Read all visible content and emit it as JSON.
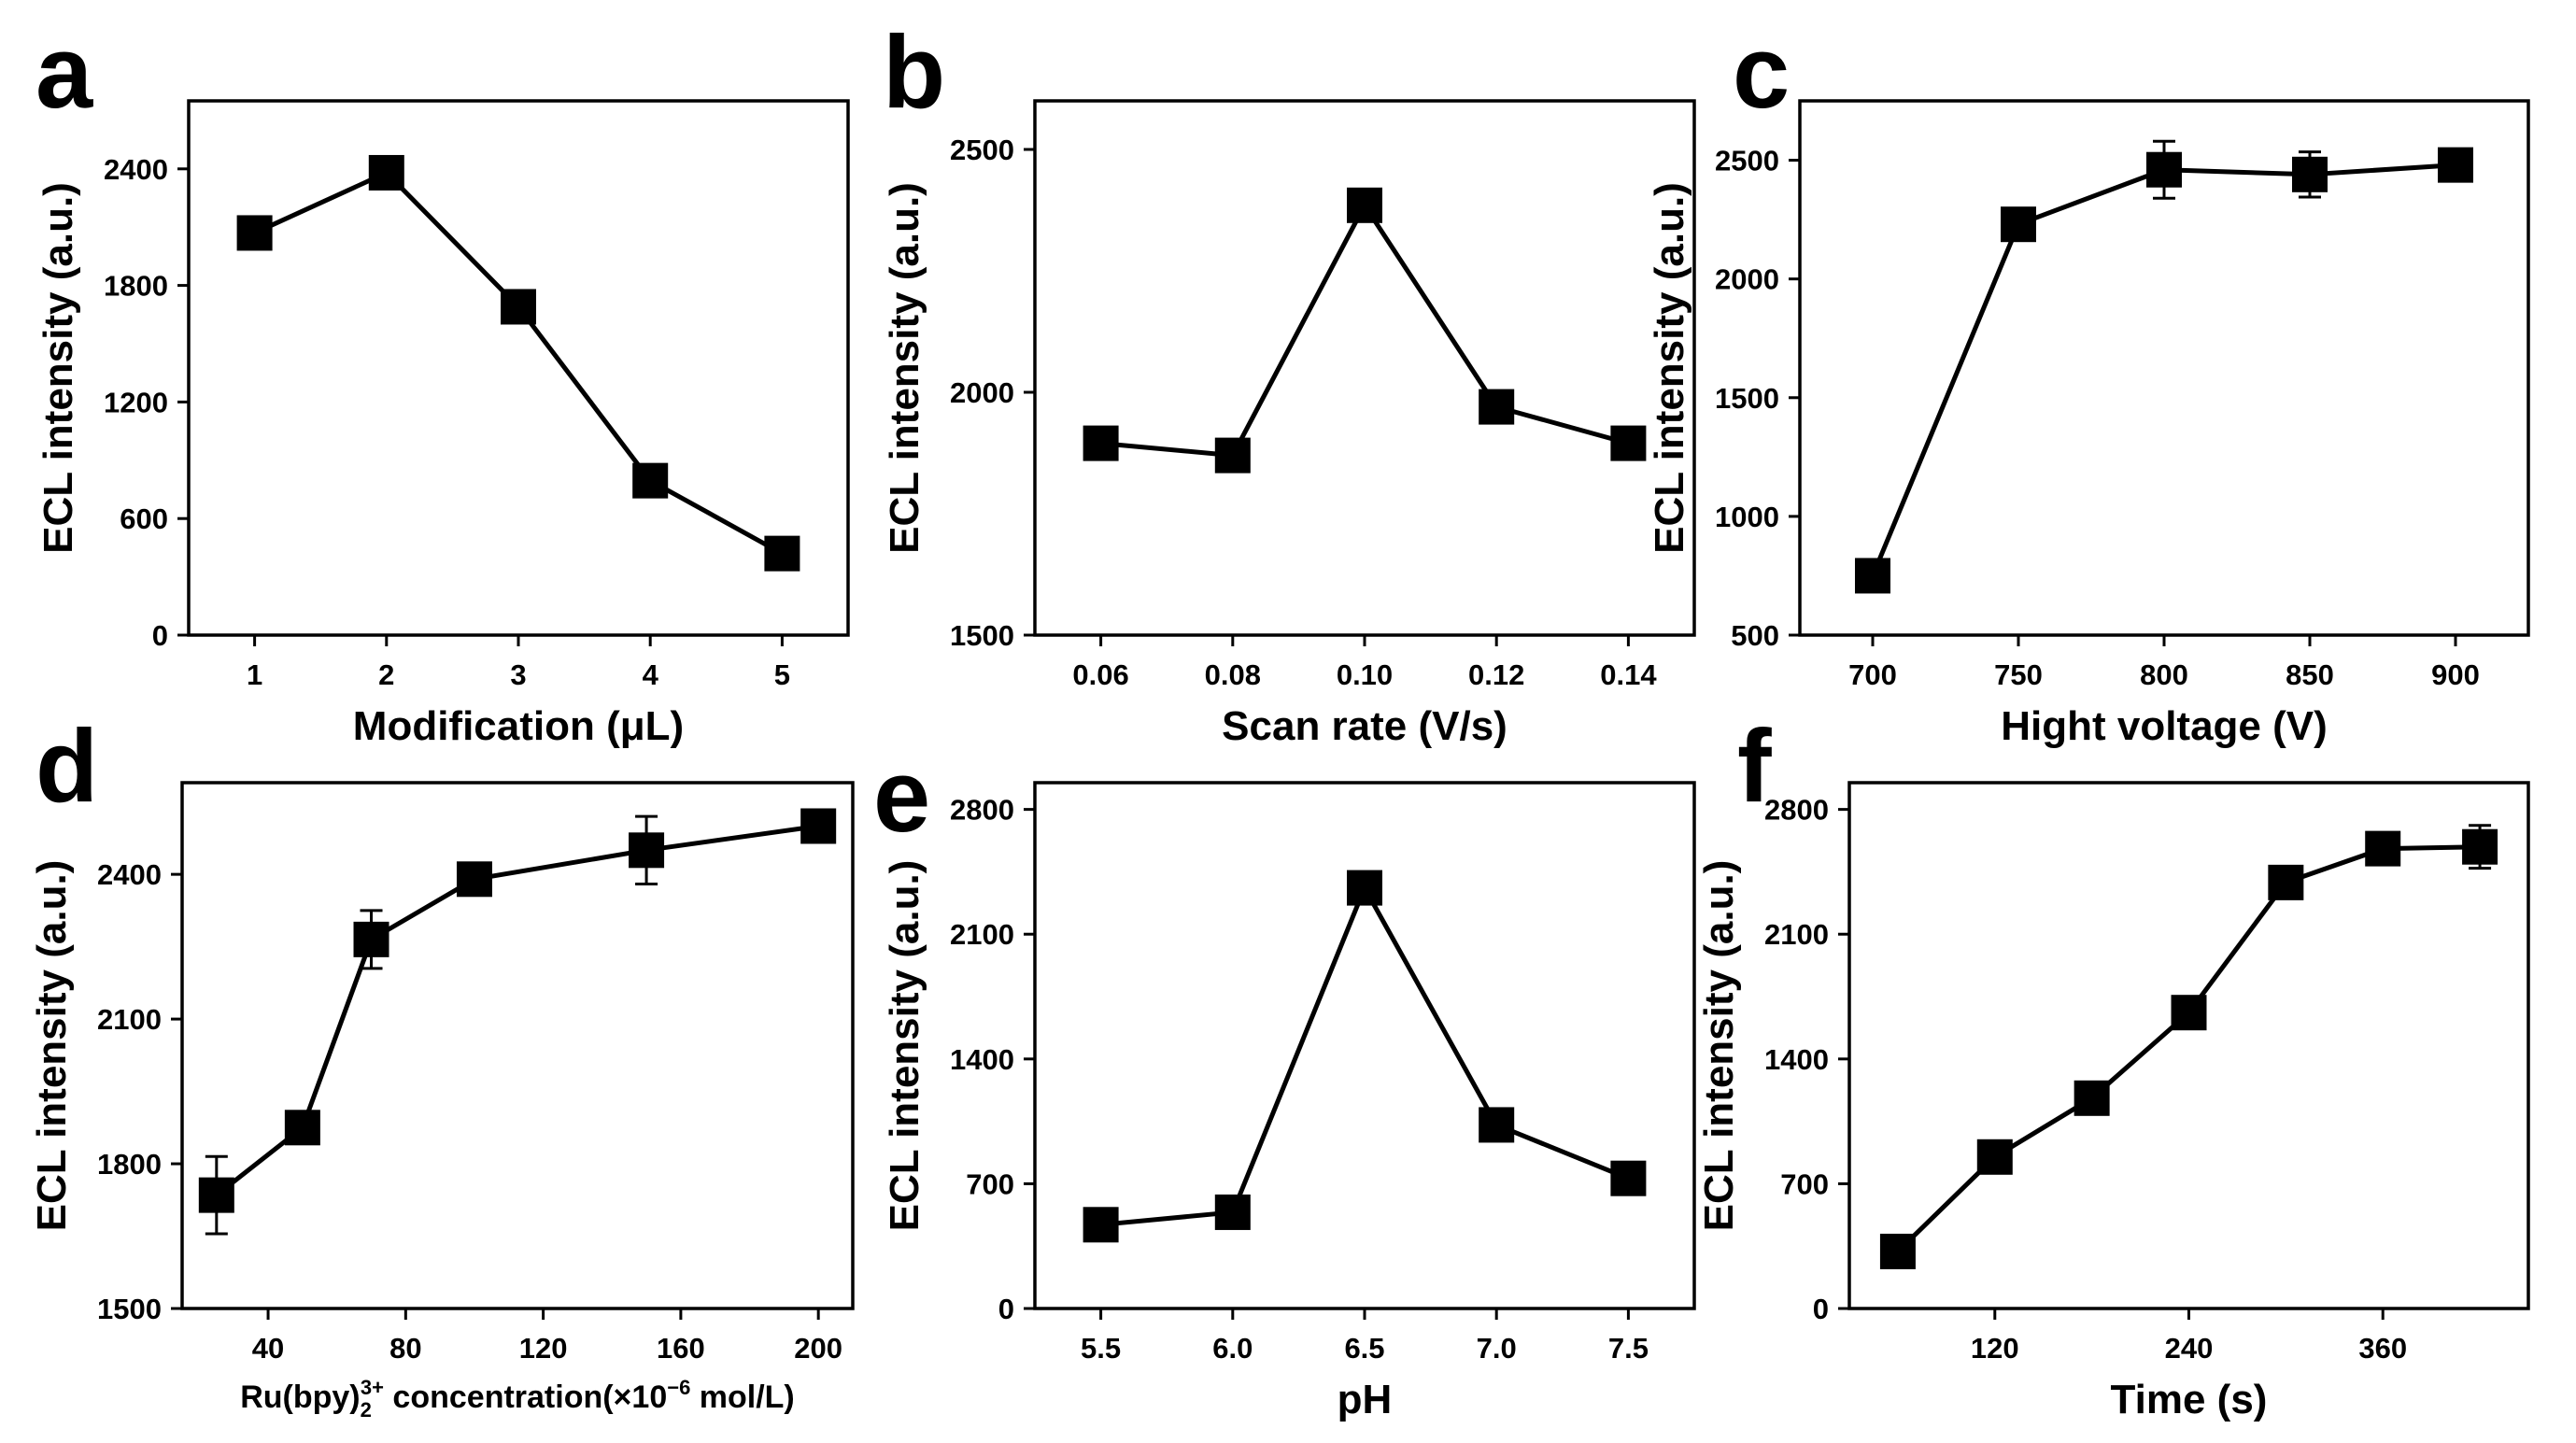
{
  "chart_data": [
    {
      "panel": "a",
      "type": "line",
      "xlabel": "Modification (μL)",
      "ylabel": "ECL intensity (a.u.)",
      "x": [
        1,
        2,
        3,
        4,
        5
      ],
      "values": [
        2070,
        2380,
        1690,
        795,
        420
      ],
      "errors": [
        0,
        0,
        0,
        0,
        0
      ],
      "xlim": [
        0.5,
        5.5
      ],
      "ylim": [
        0,
        2750
      ],
      "xticks": [
        1,
        2,
        3,
        4,
        5
      ],
      "xtick_labels": [
        "1",
        "2",
        "3",
        "4",
        "5"
      ],
      "yticks": [
        0,
        600,
        1200,
        1800,
        2400
      ],
      "ytick_labels": [
        "0",
        "600",
        "1200",
        "1800",
        "2400"
      ]
    },
    {
      "panel": "b",
      "type": "line",
      "xlabel": "Scan rate (V/s)",
      "ylabel": "ECL intensity (a.u.)",
      "x": [
        0.06,
        0.08,
        0.1,
        0.12,
        0.14
      ],
      "values": [
        1895,
        1870,
        2385,
        1970,
        1895
      ],
      "errors": [
        0,
        0,
        0,
        0,
        0
      ],
      "xlim": [
        0.05,
        0.15
      ],
      "ylim": [
        1500,
        2600
      ],
      "xticks": [
        0.06,
        0.08,
        0.1,
        0.12,
        0.14
      ],
      "xtick_labels": [
        "0.06",
        "0.08",
        "0.10",
        "0.12",
        "0.14"
      ],
      "yticks": [
        1500,
        2000,
        2500
      ],
      "ytick_labels": [
        "1500",
        "2000",
        "2500"
      ]
    },
    {
      "panel": "c",
      "type": "line",
      "xlabel": "Hight voltage (V)",
      "ylabel": "ECL intensity (a.u.)",
      "x": [
        700,
        750,
        800,
        850,
        900
      ],
      "values": [
        750,
        2230,
        2460,
        2440,
        2480
      ],
      "errors": [
        0,
        0,
        120,
        95,
        65
      ],
      "xlim": [
        675,
        925
      ],
      "ylim": [
        500,
        2750
      ],
      "xticks": [
        700,
        750,
        800,
        850,
        900
      ],
      "xtick_labels": [
        "700",
        "750",
        "800",
        "850",
        "900"
      ],
      "yticks": [
        500,
        1000,
        1500,
        2000,
        2500
      ],
      "ytick_labels": [
        "500",
        "1000",
        "1500",
        "2000",
        "2500"
      ]
    },
    {
      "panel": "d",
      "type": "line",
      "xlabel": "Ru(bpy)",
      "xlabel_sub": "2",
      "xlabel_sup": "3+",
      "xlabel_rest": " concentration(×10",
      "xlabel_exp": "−6",
      "xlabel_end": " mol/L)",
      "ylabel": "ECL intensity (a.u.)",
      "x": [
        25,
        50,
        70,
        100,
        150,
        200
      ],
      "values": [
        1735,
        1875,
        2265,
        2390,
        2450,
        2500
      ],
      "errors": [
        80,
        0,
        60,
        0,
        70,
        0
      ],
      "xlim": [
        15,
        210
      ],
      "ylim": [
        1500,
        2590
      ],
      "xticks": [
        40,
        80,
        120,
        160,
        200
      ],
      "xtick_labels": [
        "40",
        "80",
        "120",
        "160",
        "200"
      ],
      "yticks": [
        1500,
        1800,
        2100,
        2400
      ],
      "ytick_labels": [
        "1500",
        "1800",
        "2100",
        "2400"
      ]
    },
    {
      "panel": "e",
      "type": "line",
      "xlabel": "pH",
      "ylabel": "ECL intensity (a.u.)",
      "x": [
        5.5,
        6.0,
        6.5,
        7.0,
        7.5
      ],
      "values": [
        470,
        540,
        2360,
        1030,
        730
      ],
      "errors": [
        0,
        0,
        0,
        0,
        0
      ],
      "xlim": [
        5.25,
        7.75
      ],
      "ylim": [
        0,
        2950
      ],
      "xticks": [
        5.5,
        6.0,
        6.5,
        7.0,
        7.5
      ],
      "xtick_labels": [
        "5.5",
        "6.0",
        "6.5",
        "7.0",
        "7.5"
      ],
      "yticks": [
        0,
        700,
        1400,
        2100,
        2800
      ],
      "ytick_labels": [
        "0",
        "700",
        "1400",
        "2100",
        "2800"
      ]
    },
    {
      "panel": "f",
      "type": "line",
      "xlabel": "Time (s)",
      "ylabel": "ECL intensity (a.u.)",
      "x": [
        60,
        120,
        180,
        240,
        300,
        360,
        420
      ],
      "values": [
        320,
        850,
        1180,
        1660,
        2390,
        2580,
        2590
      ],
      "errors": [
        0,
        0,
        0,
        0,
        0,
        0,
        120
      ],
      "xlim": [
        30,
        450
      ],
      "ylim": [
        0,
        2950
      ],
      "xticks": [
        120,
        240,
        360
      ],
      "xtick_labels": [
        "120",
        "240",
        "360"
      ],
      "yticks": [
        0,
        700,
        1400,
        2100,
        2800
      ],
      "ytick_labels": [
        "0",
        "700",
        "1400",
        "2100",
        "2800"
      ]
    }
  ]
}
